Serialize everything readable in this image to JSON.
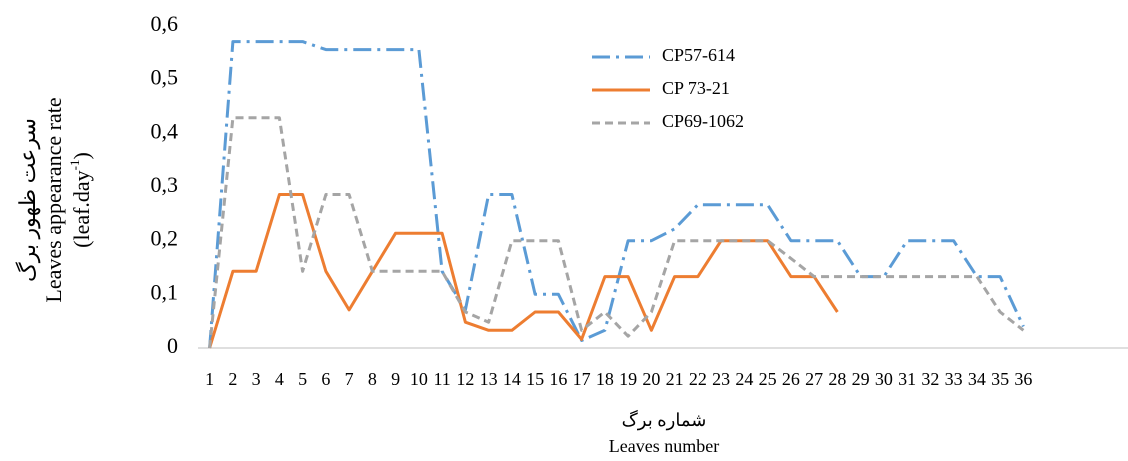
{
  "chart_data": {
    "type": "line",
    "y_label_fa": "سرعت ظهور برگ",
    "y_label": "Leaves appearance rate",
    "y_label_unit": {
      "base": "(leaf.day",
      "sup": "-1",
      "close": ")"
    },
    "x_label_fa": "شماره برگ",
    "x_label": "Leaves number",
    "categories": [
      "1",
      "2",
      "3",
      "4",
      "5",
      "6",
      "7",
      "8",
      "9",
      "10",
      "11",
      "12",
      "13",
      "14",
      "15",
      "16",
      "17",
      "18",
      "19",
      "20",
      "21",
      "22",
      "23",
      "24",
      "25",
      "26",
      "27",
      "28",
      "29",
      "30",
      "31",
      "32",
      "33",
      "34",
      "35",
      "36",
      null,
      null,
      null,
      null
    ],
    "series": [
      {
        "name": "CP57-614",
        "color": "#5b9bd5",
        "dash": "18 6 3 6",
        "values": [
          0,
          0.571,
          0.571,
          0.571,
          0.571,
          0.556,
          0.556,
          0.556,
          0.556,
          0.556,
          0.143,
          0.071,
          0.286,
          0.286,
          0.1,
          0.1,
          0.014,
          0.033,
          0.2,
          0.2,
          0.222,
          0.267,
          0.267,
          0.267,
          0.267,
          0.2,
          0.2,
          0.2,
          0.133,
          0.133,
          0.2,
          0.2,
          0.2,
          0.133,
          0.133,
          0.04,
          null,
          null,
          null,
          null
        ]
      },
      {
        "name": "CP 73-21",
        "color": "#ed7d31",
        "dash": "",
        "values": [
          0,
          0.143,
          0.143,
          0.286,
          0.286,
          0.143,
          0.071,
          0.143,
          0.214,
          0.214,
          0.214,
          0.048,
          0.033,
          0.033,
          0.067,
          0.067,
          0.016,
          0.133,
          0.133,
          0.033,
          0.133,
          0.133,
          0.2,
          0.2,
          0.2,
          0.133,
          0.133,
          0.067,
          null,
          null,
          null,
          null,
          null,
          null,
          null,
          null,
          null,
          null,
          null,
          null
        ]
      },
      {
        "name": "CP69-1062",
        "color": "#a5a5a5",
        "dash": "8 5",
        "values": [
          0,
          0.429,
          0.429,
          0.429,
          0.143,
          0.286,
          0.286,
          0.143,
          0.143,
          0.143,
          0.143,
          0.067,
          0.048,
          0.2,
          0.2,
          0.2,
          0.033,
          0.067,
          0.022,
          0.067,
          0.2,
          0.2,
          0.2,
          0.2,
          0.2,
          0.167,
          0.133,
          0.133,
          0.133,
          0.133,
          0.133,
          0.133,
          0.133,
          0.133,
          0.067,
          0.033,
          null,
          null,
          null,
          null
        ]
      }
    ],
    "ylim": [
      0,
      0.6
    ],
    "yticks": [
      0,
      {
        "value": 0.1,
        "label": "0,1"
      },
      {
        "value": 0.2,
        "label": "0,2"
      },
      {
        "value": 0.3,
        "label": "0,3"
      },
      {
        "value": 0.4,
        "label": "0,4"
      },
      {
        "value": 0.5,
        "label": "0,5"
      },
      {
        "value": 0.6,
        "label": "0,6"
      }
    ],
    "grid": false,
    "legend": "top"
  }
}
